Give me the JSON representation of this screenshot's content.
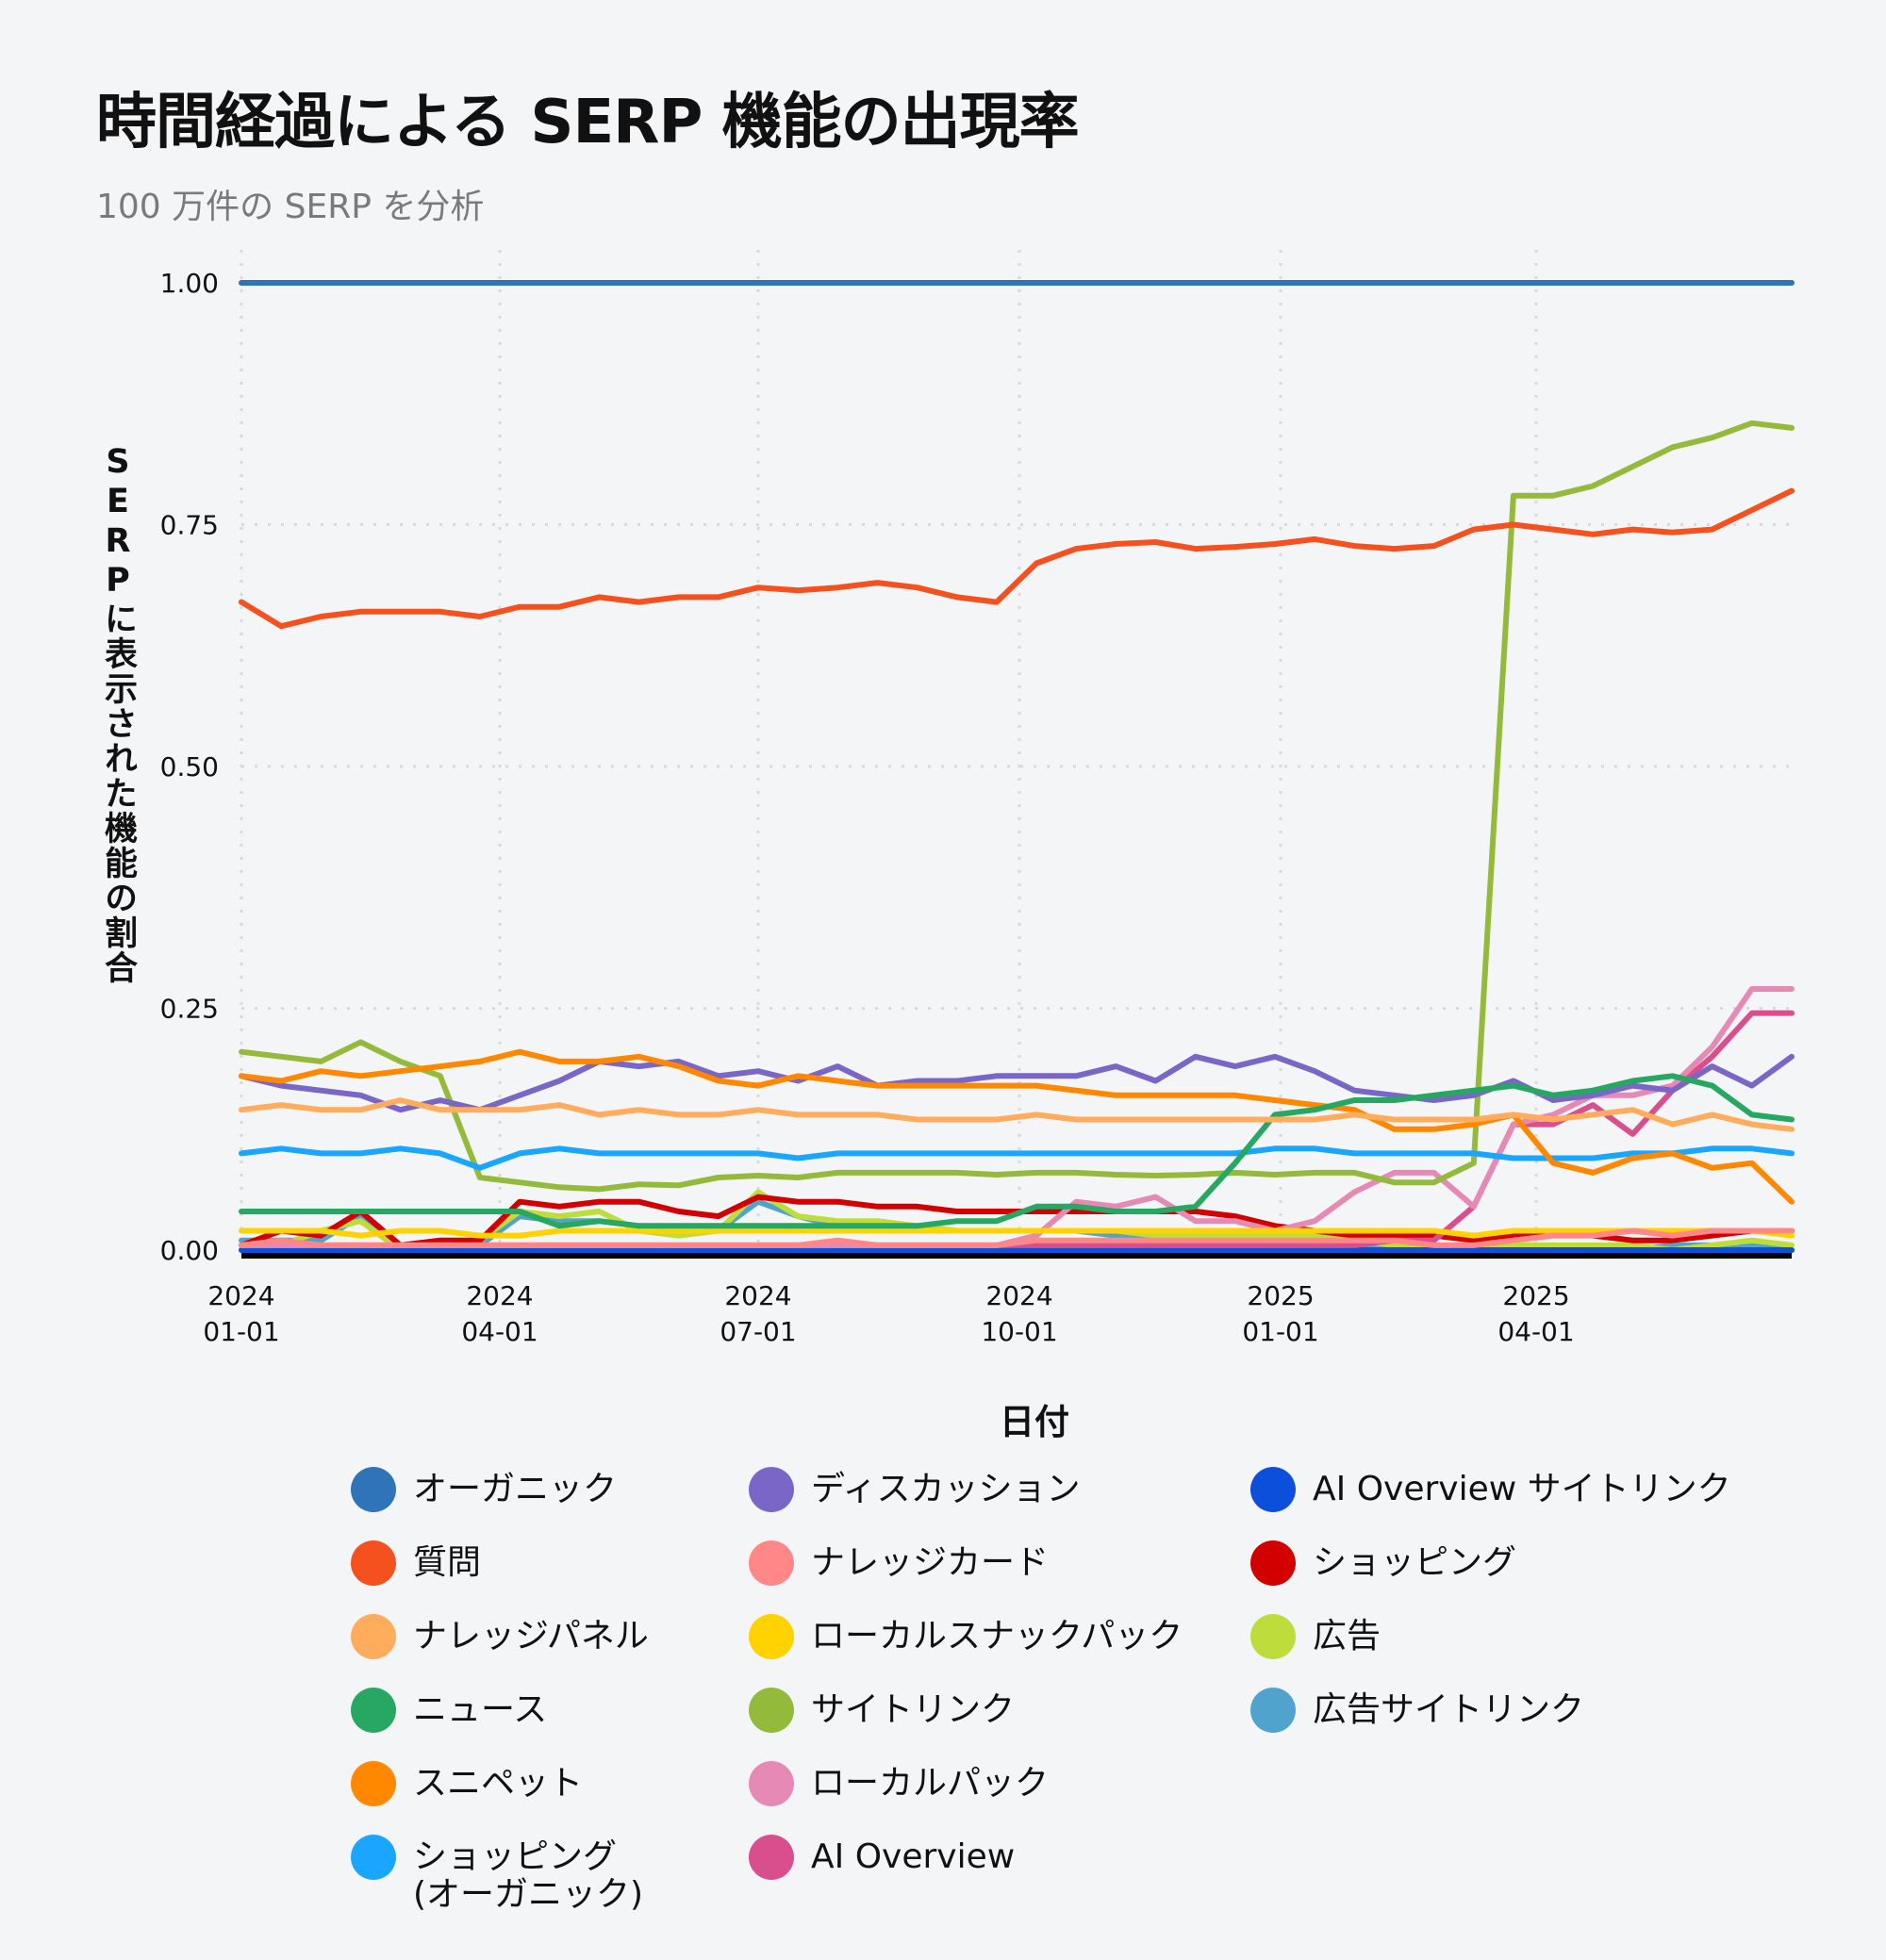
{
  "header": {
    "title": "時間経過による SERP 機能の出現率",
    "subtitle": "100 万件の SERP を分析"
  },
  "chart_data": {
    "type": "line",
    "title": "時間経過による SERP 機能の出現率",
    "subtitle": "100 万件の SERP を分析",
    "xlabel": "日付",
    "ylabel": "SERPに表示された機能の割合",
    "ylim": [
      0,
      1
    ],
    "xlim": [
      "2024-01-01",
      "2025-06-30"
    ],
    "yticks": [
      "0.00",
      "0.25",
      "0.50",
      "0.75",
      "1.00"
    ],
    "xticks": [
      {
        "date": "2024-01-01",
        "line1": "2024",
        "line2": "01-01"
      },
      {
        "date": "2024-04-01",
        "line1": "2024",
        "line2": "04-01"
      },
      {
        "date": "2024-07-01",
        "line1": "2024",
        "line2": "07-01"
      },
      {
        "date": "2024-10-01",
        "line1": "2024",
        "line2": "10-01"
      },
      {
        "date": "2025-01-01",
        "line1": "2025",
        "line2": "01-01"
      },
      {
        "date": "2025-04-01",
        "line1": "2025",
        "line2": "04-01"
      }
    ],
    "grid": true,
    "legend_placement": "bottom",
    "x": [
      "2024-01-01",
      "2024-01-15",
      "2024-01-29",
      "2024-02-12",
      "2024-02-26",
      "2024-03-11",
      "2024-03-25",
      "2024-04-08",
      "2024-04-22",
      "2024-05-06",
      "2024-05-20",
      "2024-06-03",
      "2024-06-17",
      "2024-07-01",
      "2024-07-15",
      "2024-07-29",
      "2024-08-12",
      "2024-08-26",
      "2024-09-09",
      "2024-09-23",
      "2024-10-07",
      "2024-10-21",
      "2024-11-04",
      "2024-11-18",
      "2024-12-02",
      "2024-12-16",
      "2024-12-30",
      "2025-01-13",
      "2025-01-27",
      "2025-02-10",
      "2025-02-24",
      "2025-03-10",
      "2025-03-24",
      "2025-04-07",
      "2025-04-21",
      "2025-05-05",
      "2025-05-19",
      "2025-06-02",
      "2025-06-16",
      "2025-06-30"
    ],
    "series": [
      {
        "name": "オーガニック",
        "color": "#2f74b8",
        "values": [
          1,
          1,
          1,
          1,
          1,
          1,
          1,
          1,
          1,
          1,
          1,
          1,
          1,
          1,
          1,
          1,
          1,
          1,
          1,
          1,
          1,
          1,
          1,
          1,
          1,
          1,
          1,
          1,
          1,
          1,
          1,
          1,
          1,
          1,
          1,
          1,
          1,
          1,
          1,
          1
        ]
      },
      {
        "name": "質問",
        "color": "#f4511e",
        "values": [
          0.67,
          0.645,
          0.655,
          0.66,
          0.66,
          0.66,
          0.655,
          0.665,
          0.665,
          0.675,
          0.67,
          0.675,
          0.675,
          0.685,
          0.682,
          0.685,
          0.69,
          0.685,
          0.675,
          0.67,
          0.71,
          0.725,
          0.73,
          0.732,
          0.725,
          0.727,
          0.73,
          0.735,
          0.728,
          0.725,
          0.728,
          0.745,
          0.75,
          0.745,
          0.74,
          0.745,
          0.742,
          0.745,
          0.765,
          0.785
        ]
      },
      {
        "name": "ナレッジパネル",
        "color": "#ffad5c",
        "values": [
          0.145,
          0.15,
          0.145,
          0.145,
          0.155,
          0.145,
          0.145,
          0.145,
          0.15,
          0.14,
          0.145,
          0.14,
          0.14,
          0.145,
          0.14,
          0.14,
          0.14,
          0.135,
          0.135,
          0.135,
          0.14,
          0.135,
          0.135,
          0.135,
          0.135,
          0.135,
          0.135,
          0.135,
          0.14,
          0.135,
          0.135,
          0.135,
          0.14,
          0.135,
          0.14,
          0.145,
          0.13,
          0.14,
          0.13,
          0.125
        ]
      },
      {
        "name": "ニュース",
        "color": "#27a862",
        "values": [
          0.04,
          0.04,
          0.04,
          0.04,
          0.04,
          0.04,
          0.04,
          0.04,
          0.025,
          0.03,
          0.025,
          0.025,
          0.025,
          0.025,
          0.025,
          0.025,
          0.025,
          0.025,
          0.03,
          0.03,
          0.045,
          0.045,
          0.04,
          0.04,
          0.045,
          0.09,
          0.14,
          0.145,
          0.155,
          0.155,
          0.16,
          0.165,
          0.17,
          0.16,
          0.165,
          0.175,
          0.18,
          0.17,
          0.14,
          0.135
        ]
      },
      {
        "name": "スニペット",
        "color": "#ff8800",
        "values": [
          0.18,
          0.175,
          0.185,
          0.18,
          0.185,
          0.19,
          0.195,
          0.205,
          0.195,
          0.195,
          0.2,
          0.19,
          0.175,
          0.17,
          0.18,
          0.175,
          0.17,
          0.17,
          0.17,
          0.17,
          0.17,
          0.165,
          0.16,
          0.16,
          0.16,
          0.16,
          0.155,
          0.15,
          0.145,
          0.125,
          0.125,
          0.13,
          0.14,
          0.09,
          0.08,
          0.095,
          0.1,
          0.085,
          0.09,
          0.05
        ]
      },
      {
        "name": "ショッピング\n(オーガニック)",
        "color": "#1aa6ff",
        "values": [
          0.1,
          0.105,
          0.1,
          0.1,
          0.105,
          0.1,
          0.085,
          0.1,
          0.105,
          0.1,
          0.1,
          0.1,
          0.1,
          0.1,
          0.095,
          0.1,
          0.1,
          0.1,
          0.1,
          0.1,
          0.1,
          0.1,
          0.1,
          0.1,
          0.1,
          0.1,
          0.105,
          0.105,
          0.1,
          0.1,
          0.1,
          0.1,
          0.095,
          0.095,
          0.095,
          0.1,
          0.1,
          0.105,
          0.105,
          0.1
        ]
      },
      {
        "name": "ディスカッション",
        "color": "#7a66c6",
        "values": [
          0.18,
          0.17,
          0.165,
          0.16,
          0.145,
          0.155,
          0.145,
          0.16,
          0.175,
          0.195,
          0.19,
          0.195,
          0.18,
          0.185,
          0.175,
          0.19,
          0.17,
          0.175,
          0.175,
          0.18,
          0.18,
          0.18,
          0.19,
          0.175,
          0.2,
          0.19,
          0.2,
          0.185,
          0.165,
          0.16,
          0.155,
          0.16,
          0.175,
          0.155,
          0.16,
          0.17,
          0.165,
          0.19,
          0.17,
          0.2
        ]
      },
      {
        "name": "ナレッジカード",
        "color": "#ff8787",
        "values": [
          0.005,
          0.01,
          0.005,
          0.005,
          0.005,
          0.005,
          0.005,
          0.005,
          0.005,
          0.005,
          0.005,
          0.005,
          0.005,
          0.005,
          0.005,
          0.01,
          0.005,
          0.005,
          0.005,
          0.005,
          0.01,
          0.01,
          0.01,
          0.01,
          0.01,
          0.01,
          0.01,
          0.01,
          0.01,
          0.01,
          0.005,
          0.005,
          0.01,
          0.015,
          0.015,
          0.02,
          0.015,
          0.02,
          0.02,
          0.02
        ]
      },
      {
        "name": "ローカルスナックパック",
        "color": "#ffd200",
        "values": [
          0.02,
          0.02,
          0.02,
          0.015,
          0.02,
          0.02,
          0.015,
          0.015,
          0.02,
          0.02,
          0.02,
          0.02,
          0.02,
          0.02,
          0.02,
          0.02,
          0.02,
          0.02,
          0.02,
          0.02,
          0.02,
          0.02,
          0.02,
          0.02,
          0.02,
          0.02,
          0.02,
          0.02,
          0.02,
          0.02,
          0.02,
          0.015,
          0.02,
          0.02,
          0.02,
          0.02,
          0.02,
          0.02,
          0.02,
          0.015
        ]
      },
      {
        "name": "サイトリンク",
        "color": "#93ba3a",
        "values": [
          0.205,
          0.2,
          0.195,
          0.215,
          0.195,
          0.18,
          0.075,
          0.07,
          0.065,
          0.063,
          0.068,
          0.067,
          0.075,
          0.077,
          0.075,
          0.08,
          0.08,
          0.08,
          0.08,
          0.078,
          0.08,
          0.08,
          0.078,
          0.077,
          0.078,
          0.08,
          0.078,
          0.08,
          0.08,
          0.07,
          0.07,
          0.09,
          0.78,
          0.78,
          0.79,
          0.81,
          0.83,
          0.84,
          0.855,
          0.85
        ]
      },
      {
        "name": "ローカルパック",
        "color": "#e68ab5",
        "values": [
          0.005,
          0.005,
          0.005,
          0.005,
          0.005,
          0.005,
          0.005,
          0.005,
          0.005,
          0.005,
          0.005,
          0.005,
          0.005,
          0.005,
          0.005,
          0.005,
          0.005,
          0.005,
          0.005,
          0.005,
          0.015,
          0.05,
          0.045,
          0.055,
          0.03,
          0.03,
          0.02,
          0.03,
          0.06,
          0.08,
          0.08,
          0.045,
          0.13,
          0.14,
          0.16,
          0.16,
          0.17,
          0.21,
          0.27,
          0.27
        ]
      },
      {
        "name": "AI Overview",
        "color": "#d94f8e",
        "values": [
          0.005,
          0.005,
          0.005,
          0.005,
          0.005,
          0.005,
          0.005,
          0.005,
          0.005,
          0.005,
          0.005,
          0.005,
          0.005,
          0.005,
          0.005,
          0.005,
          0.005,
          0.005,
          0.005,
          0.005,
          0.005,
          0.005,
          0.005,
          0.005,
          0.005,
          0.005,
          0.005,
          0.005,
          0.005,
          0.01,
          0.01,
          0.045,
          0.13,
          0.13,
          0.15,
          0.12,
          0.165,
          0.2,
          0.245,
          0.245
        ]
      },
      {
        "name": "AI Overview サイトリンク",
        "color": "#0b4fdb",
        "values": [
          0,
          0,
          0,
          0,
          0,
          0,
          0,
          0,
          0,
          0,
          0,
          0,
          0,
          0,
          0,
          0,
          0,
          0,
          0,
          0,
          0,
          0,
          0,
          0,
          0,
          0,
          0,
          0,
          0,
          0,
          0,
          0,
          0,
          0,
          0,
          0,
          0,
          0,
          0,
          0
        ]
      },
      {
        "name": "ショッピング",
        "color": "#d20000",
        "values": [
          0.005,
          0.02,
          0.015,
          0.04,
          0.005,
          0.01,
          0.01,
          0.05,
          0.045,
          0.05,
          0.05,
          0.04,
          0.035,
          0.055,
          0.05,
          0.05,
          0.045,
          0.045,
          0.04,
          0.04,
          0.04,
          0.04,
          0.04,
          0.04,
          0.04,
          0.035,
          0.025,
          0.02,
          0.015,
          0.015,
          0.015,
          0.01,
          0.015,
          0.02,
          0.015,
          0.01,
          0.01,
          0.015,
          0.02,
          0.02
        ]
      },
      {
        "name": "広告",
        "color": "#bedd3c",
        "values": [
          0.005,
          0.005,
          0.02,
          0.03,
          0,
          0.005,
          0.01,
          0.04,
          0.035,
          0.04,
          0.02,
          0.015,
          0.02,
          0.06,
          0.035,
          0.03,
          0.03,
          0.025,
          0.02,
          0.02,
          0.02,
          0.02,
          0.02,
          0.015,
          0.015,
          0.015,
          0.015,
          0.015,
          0.01,
          0.005,
          0.005,
          0.005,
          0.005,
          0.005,
          0.005,
          0.005,
          0,
          0.005,
          0.01,
          0.005
        ]
      },
      {
        "name": "広告サイトリンク",
        "color": "#4fa3cc",
        "values": [
          0.01,
          0.01,
          0.01,
          0.035,
          0.005,
          0,
          0.005,
          0.035,
          0.03,
          0.03,
          0.025,
          0.02,
          0.02,
          0.05,
          0.035,
          0.025,
          0.02,
          0.02,
          0.02,
          0.02,
          0.02,
          0.02,
          0.015,
          0.015,
          0.01,
          0.01,
          0.01,
          0.01,
          0.005,
          0.005,
          0,
          0,
          0,
          0.005,
          0,
          0,
          0.005,
          0.005,
          0.005,
          0
        ]
      }
    ]
  },
  "legend": {
    "columns": [
      [
        "オーガニック",
        "質問",
        "ナレッジパネル",
        "ニュース",
        "スニペット",
        "ショッピング\n(オーガニック)"
      ],
      [
        "ディスカッション",
        "ナレッジカード",
        "ローカルスナックパック",
        "サイトリンク",
        "ローカルパック",
        "AI Overview"
      ],
      [
        "AI Overview サイトリンク",
        "ショッピング",
        "広告",
        "広告サイトリンク"
      ]
    ]
  }
}
